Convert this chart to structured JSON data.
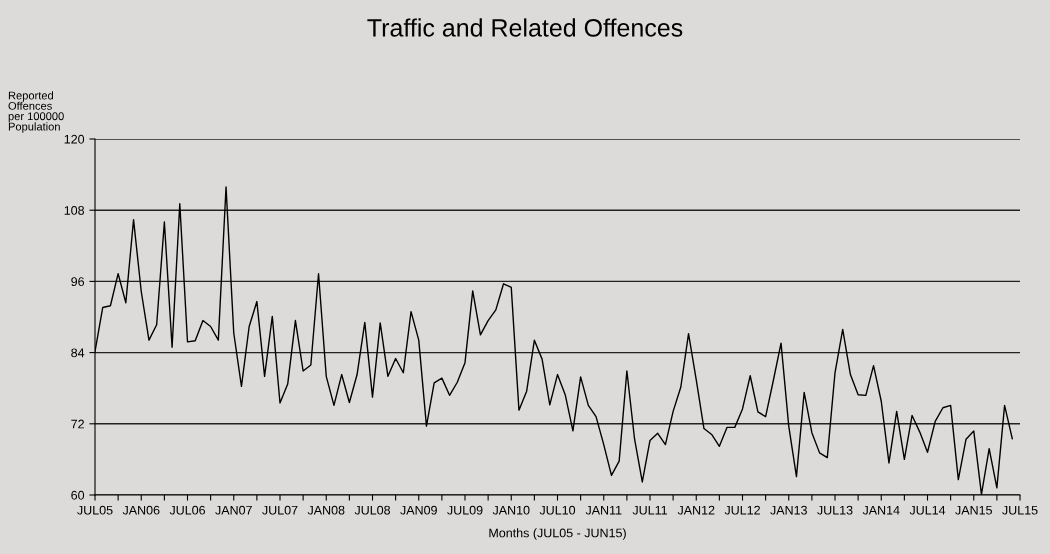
{
  "chart_data": {
    "type": "line",
    "title": "Traffic and Related Offences",
    "xlabel": "Months (JUL05 - JUN15)",
    "ylabel": "Reported\nOffences\nper 100000\nPopulation",
    "series": [
      {
        "color": "#000000",
        "x": [
          "2005-07",
          "2005-08",
          "2005-09",
          "2005-10",
          "2005-11",
          "2005-12",
          "2006-01",
          "2006-02",
          "2006-03",
          "2006-04",
          "2006-05",
          "2006-06",
          "2006-07",
          "2006-08",
          "2006-09",
          "2006-10",
          "2006-11",
          "2006-12",
          "2007-01",
          "2007-02",
          "2007-03",
          "2007-04",
          "2007-05",
          "2007-06",
          "2007-07",
          "2007-08",
          "2007-09",
          "2007-10",
          "2007-11",
          "2007-12",
          "2008-01",
          "2008-02",
          "2008-03",
          "2008-04",
          "2008-05",
          "2008-06",
          "2008-07",
          "2008-08",
          "2008-09",
          "2008-10",
          "2008-11",
          "2008-12",
          "2009-01",
          "2009-02",
          "2009-03",
          "2009-04",
          "2009-05",
          "2009-06",
          "2009-07",
          "2009-08",
          "2009-09",
          "2009-10",
          "2009-11",
          "2009-12",
          "2010-01",
          "2010-02",
          "2010-03",
          "2010-04",
          "2010-05",
          "2010-06",
          "2010-07",
          "2010-08",
          "2010-09",
          "2010-10",
          "2010-11",
          "2010-12",
          "2011-01",
          "2011-02",
          "2011-03",
          "2011-04",
          "2011-05",
          "2011-06",
          "2011-07",
          "2011-08",
          "2011-09",
          "2011-10",
          "2011-11",
          "2011-12",
          "2012-01",
          "2012-02",
          "2012-03",
          "2012-04",
          "2012-05",
          "2012-06",
          "2012-07",
          "2012-08",
          "2012-09",
          "2012-10",
          "2012-11",
          "2012-12",
          "2013-01",
          "2013-02",
          "2013-03",
          "2013-04",
          "2013-05",
          "2013-06",
          "2013-07",
          "2013-08",
          "2013-09",
          "2013-10",
          "2013-11",
          "2013-12",
          "2014-01",
          "2014-02",
          "2014-03",
          "2014-04",
          "2014-05",
          "2014-06",
          "2014-07",
          "2014-08",
          "2014-09",
          "2014-10",
          "2014-11",
          "2014-12",
          "2015-01",
          "2015-02",
          "2015-03",
          "2015-04",
          "2015-05",
          "2015-06"
        ],
        "values": [
          84.2,
          91.6,
          91.9,
          97.3,
          92.4,
          106.4,
          94.3,
          86.1,
          88.7,
          106.0,
          84.9,
          109.1,
          85.8,
          86.0,
          89.4,
          88.4,
          86.1,
          111.9,
          87.3,
          78.3,
          88.4,
          92.6,
          80.0,
          90.1,
          75.5,
          78.7,
          89.4,
          80.9,
          81.9,
          97.3,
          80.0,
          75.1,
          80.3,
          75.6,
          80.3,
          89.1,
          76.5,
          89.0,
          80.0,
          83.0,
          80.6,
          90.9,
          86.1,
          71.6,
          78.9,
          79.7,
          76.8,
          79.0,
          82.3,
          94.4,
          87.0,
          89.4,
          91.2,
          95.6,
          95.0,
          74.3,
          77.5,
          86.1,
          82.9,
          75.2,
          80.3,
          76.9,
          70.8,
          79.9,
          75.1,
          73.2,
          68.5,
          63.3,
          65.7,
          80.9,
          69.4,
          62.2,
          69.2,
          70.4,
          68.5,
          74.1,
          78.2,
          87.2,
          79.4,
          71.2,
          70.2,
          68.2,
          71.4,
          71.4,
          74.5,
          80.1,
          74.0,
          73.2,
          79.3,
          85.6,
          71.6,
          63.1,
          77.3,
          70.5,
          67.1,
          66.3,
          80.6,
          87.9,
          80.3,
          76.9,
          76.8,
          81.8,
          75.8,
          65.4,
          74.1,
          66.0,
          73.4,
          70.6,
          67.2,
          72.4,
          74.7,
          75.1,
          62.6,
          69.4,
          70.8,
          60.1,
          67.8,
          61.2,
          75.1,
          69.5
        ]
      }
    ],
    "xlim": [
      "2005-07",
      "2015-07"
    ],
    "xticks": [
      {
        "value": "2005-07",
        "label": "JUL05"
      },
      {
        "value": "2005-10",
        "label": null
      },
      {
        "value": "2006-01",
        "label": "JAN06"
      },
      {
        "value": "2006-04",
        "label": null
      },
      {
        "value": "2006-07",
        "label": "JUL06"
      },
      {
        "value": "2006-10",
        "label": null
      },
      {
        "value": "2007-01",
        "label": "JAN07"
      },
      {
        "value": "2007-04",
        "label": null
      },
      {
        "value": "2007-07",
        "label": "JUL07"
      },
      {
        "value": "2007-10",
        "label": null
      },
      {
        "value": "2008-01",
        "label": "JAN08"
      },
      {
        "value": "2008-04",
        "label": null
      },
      {
        "value": "2008-07",
        "label": "JUL08"
      },
      {
        "value": "2008-10",
        "label": null
      },
      {
        "value": "2009-01",
        "label": "JAN09"
      },
      {
        "value": "2009-04",
        "label": null
      },
      {
        "value": "2009-07",
        "label": "JUL09"
      },
      {
        "value": "2009-10",
        "label": null
      },
      {
        "value": "2010-01",
        "label": "JAN10"
      },
      {
        "value": "2010-04",
        "label": null
      },
      {
        "value": "2010-07",
        "label": "JUL10"
      },
      {
        "value": "2010-10",
        "label": null
      },
      {
        "value": "2011-01",
        "label": "JAN11"
      },
      {
        "value": "2011-04",
        "label": null
      },
      {
        "value": "2011-07",
        "label": "JUL11"
      },
      {
        "value": "2011-10",
        "label": null
      },
      {
        "value": "2012-01",
        "label": "JAN12"
      },
      {
        "value": "2012-04",
        "label": null
      },
      {
        "value": "2012-07",
        "label": "JUL12"
      },
      {
        "value": "2012-10",
        "label": null
      },
      {
        "value": "2013-01",
        "label": "JAN13"
      },
      {
        "value": "2013-04",
        "label": null
      },
      {
        "value": "2013-07",
        "label": "JUL13"
      },
      {
        "value": "2013-10",
        "label": null
      },
      {
        "value": "2014-01",
        "label": "JAN14"
      },
      {
        "value": "2014-04",
        "label": null
      },
      {
        "value": "2014-07",
        "label": "JUL14"
      },
      {
        "value": "2014-10",
        "label": null
      },
      {
        "value": "2015-01",
        "label": "JAN15"
      },
      {
        "value": "2015-04",
        "label": null
      },
      {
        "value": "2015-07",
        "label": "JUL15"
      }
    ],
    "ylim": [
      60,
      120
    ],
    "yticks": [
      60,
      72,
      84,
      96,
      108,
      120
    ],
    "grid": "y",
    "marker": "none",
    "line_style": "solid"
  }
}
